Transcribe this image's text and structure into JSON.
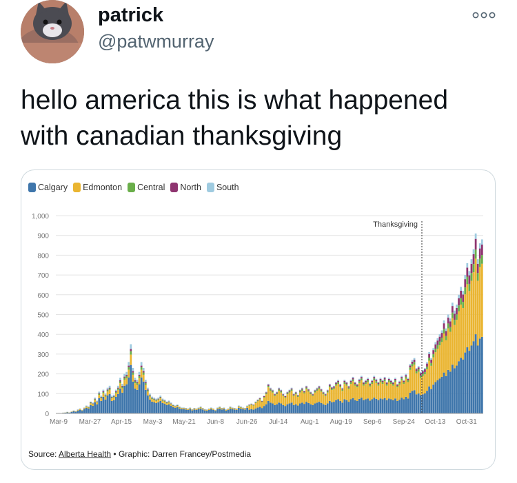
{
  "tweet": {
    "display_name": "patrick",
    "handle": "@patwmurray",
    "text_line1": "hello america this is what happened",
    "text_line2": "with canadian thanksgiving",
    "more_icon": "more-dots-icon"
  },
  "source": {
    "prefix": "Source: ",
    "link": "Alberta Health",
    "bullet": " • ",
    "credit": "Graphic: Darren Francey/Postmedia"
  },
  "chart_data": {
    "type": "bar",
    "stacked": true,
    "legend_position": "top-left",
    "grid": true,
    "ylim": [
      0,
      1000
    ],
    "yticks": [
      "1,000",
      "900",
      "800",
      "700",
      "600",
      "500",
      "400",
      "300",
      "200",
      "100",
      "0"
    ],
    "xtick_labels": [
      "Mar-9",
      "Mar-27",
      "Apr-15",
      "May-3",
      "May-21",
      "Jun-8",
      "Jun-26",
      "Jul-14",
      "Aug-1",
      "Aug-19",
      "Sep-6",
      "Sep-24",
      "Oct-13",
      "Oct-31"
    ],
    "annotation": "Thanksgiving",
    "annotation_x": "Oct-12",
    "series": [
      {
        "name": "Calgary",
        "color": "#3f76ab"
      },
      {
        "name": "Edmonton",
        "color": "#eab531"
      },
      {
        "name": "Central",
        "color": "#6aae4a"
      },
      {
        "name": "North",
        "color": "#8f3570"
      },
      {
        "name": "South",
        "color": "#9fcbe0"
      }
    ],
    "approx_daily_totals": {
      "start_date": "Mar-5",
      "values": [
        0,
        2,
        1,
        4,
        5,
        8,
        5,
        10,
        15,
        12,
        20,
        25,
        18,
        30,
        40,
        35,
        60,
        55,
        80,
        65,
        110,
        90,
        120,
        100,
        130,
        140,
        90,
        95,
        120,
        140,
        180,
        150,
        200,
        210,
        260,
        350,
        230,
        180,
        170,
        210,
        260,
        230,
        170,
        130,
        100,
        85,
        80,
        75,
        80,
        90,
        75,
        70,
        60,
        65,
        55,
        45,
        40,
        45,
        35,
        30,
        30,
        28,
        25,
        30,
        22,
        28,
        25,
        30,
        35,
        28,
        22,
        20,
        25,
        30,
        25,
        18,
        30,
        35,
        28,
        30,
        20,
        25,
        35,
        30,
        28,
        25,
        40,
        35,
        30,
        28,
        40,
        45,
        50,
        45,
        60,
        70,
        80,
        65,
        90,
        110,
        150,
        130,
        120,
        100,
        110,
        130,
        120,
        100,
        90,
        110,
        120,
        130,
        100,
        110,
        95,
        120,
        130,
        115,
        140,
        125,
        110,
        100,
        120,
        130,
        140,
        125,
        110,
        100,
        120,
        150,
        135,
        140,
        160,
        170,
        150,
        130,
        170,
        160,
        140,
        170,
        185,
        160,
        150,
        175,
        190,
        160,
        170,
        180,
        155,
        170,
        190,
        175,
        160,
        180,
        170,
        185,
        160,
        180,
        170,
        160,
        180,
        150,
        165,
        190,
        170,
        200,
        180,
        250,
        270,
        280,
        230,
        240,
        210,
        220,
        230,
        260,
        310,
        280,
        330,
        360,
        380,
        400,
        420,
        470,
        430,
        500,
        480,
        560,
        520,
        550,
        600,
        640,
        620,
        700,
        760,
        720,
        780,
        830,
        910,
        780,
        860,
        880
      ]
    }
  }
}
